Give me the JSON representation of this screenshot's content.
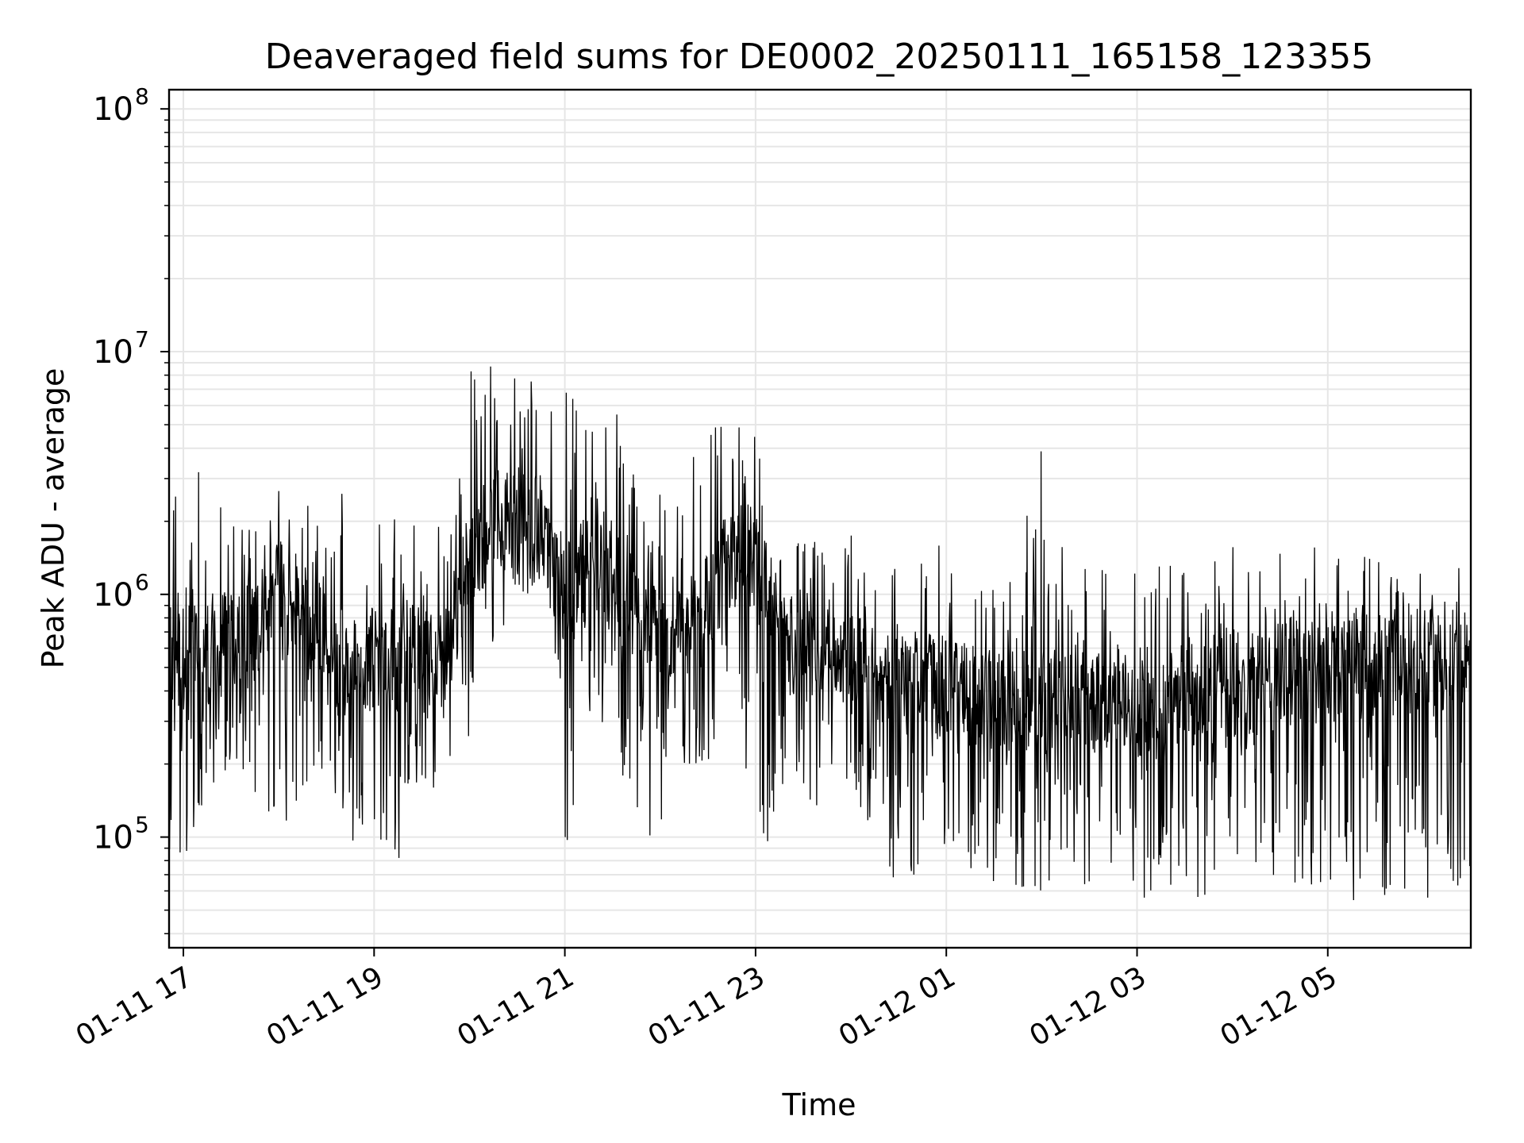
{
  "chart_data": {
    "type": "line",
    "title": "Deaveraged field sums for DE0002_20250111_165158_123355",
    "xlabel": "Time",
    "ylabel": "Peak ADU - average",
    "y_scale": "log",
    "ylim": [
      35000,
      120000000
    ],
    "xlim": [
      "2025-01-11 16:51",
      "2025-01-12 06:30"
    ],
    "grid": true,
    "line_color": "#000000",
    "grid_color": "#e6e6e6",
    "x_ticks": [
      {
        "label": "01-11 17",
        "t": "2025-01-11 17:00"
      },
      {
        "label": "01-11 19",
        "t": "2025-01-11 19:00"
      },
      {
        "label": "01-11 21",
        "t": "2025-01-11 21:00"
      },
      {
        "label": "01-11 23",
        "t": "2025-01-11 23:00"
      },
      {
        "label": "01-12 01",
        "t": "2025-01-12 01:00"
      },
      {
        "label": "01-12 03",
        "t": "2025-01-12 03:00"
      },
      {
        "label": "01-12 05",
        "t": "2025-01-12 05:00"
      }
    ],
    "y_ticks": [
      {
        "base": "10",
        "exp": "5",
        "value": 100000
      },
      {
        "base": "10",
        "exp": "6",
        "value": 1000000
      },
      {
        "base": "10",
        "exp": "7",
        "value": 10000000
      },
      {
        "base": "10",
        "exp": "8",
        "value": 100000000
      }
    ],
    "series": [
      {
        "x": [
          "2025-01-11 16:51",
          "2025-01-11 17:00",
          "2025-01-11 17:15",
          "2025-01-11 17:30",
          "2025-01-11 17:45",
          "2025-01-11 18:00",
          "2025-01-11 18:15",
          "2025-01-11 18:30",
          "2025-01-11 18:45",
          "2025-01-11 19:00",
          "2025-01-11 19:15",
          "2025-01-11 19:30",
          "2025-01-11 19:45",
          "2025-01-11 20:00",
          "2025-01-11 20:15",
          "2025-01-11 20:30",
          "2025-01-11 20:45",
          "2025-01-11 21:00",
          "2025-01-11 21:15",
          "2025-01-11 21:30",
          "2025-01-11 21:45",
          "2025-01-11 22:00",
          "2025-01-11 22:15",
          "2025-01-11 22:30",
          "2025-01-11 22:45",
          "2025-01-11 23:00",
          "2025-01-11 23:15",
          "2025-01-11 23:30",
          "2025-01-11 23:45",
          "2025-01-12 00:00",
          "2025-01-12 00:15",
          "2025-01-12 00:30",
          "2025-01-12 00:45",
          "2025-01-12 01:00",
          "2025-01-12 01:15",
          "2025-01-12 01:30",
          "2025-01-12 01:45",
          "2025-01-12 02:00",
          "2025-01-12 02:15",
          "2025-01-12 02:30",
          "2025-01-12 02:45",
          "2025-01-12 03:00",
          "2025-01-12 03:15",
          "2025-01-12 03:30",
          "2025-01-12 03:45",
          "2025-01-12 04:00",
          "2025-01-12 04:15",
          "2025-01-12 04:30",
          "2025-01-12 04:45",
          "2025-01-12 05:00",
          "2025-01-12 05:15",
          "2025-01-12 05:30",
          "2025-01-12 05:45",
          "2025-01-12 06:00",
          "2025-01-12 06:15",
          "2025-01-12 06:30"
        ],
        "y_center": [
          600000,
          550000,
          600000,
          650000,
          700000,
          1200000,
          800000,
          550000,
          500000,
          550000,
          600000,
          550000,
          500000,
          1500000,
          2000000,
          2200000,
          2000000,
          900000,
          1400000,
          1200000,
          800000,
          700000,
          700000,
          900000,
          1500000,
          1300000,
          700000,
          550000,
          500000,
          500000,
          480000,
          450000,
          450000,
          400000,
          380000,
          370000,
          360000,
          350000,
          350000,
          350000,
          350000,
          360000,
          370000,
          380000,
          400000,
          420000,
          440000,
          460000,
          480000,
          500000,
          500000,
          510000,
          520000,
          520000,
          530000,
          530000
        ],
        "y_min": [
          90000,
          55000,
          150000,
          200000,
          150000,
          90000,
          120000,
          200000,
          85000,
          100000,
          70000,
          130000,
          180000,
          250000,
          600000,
          900000,
          800000,
          75000,
          300000,
          250000,
          90000,
          90000,
          200000,
          200000,
          500000,
          60000,
          150000,
          80000,
          150000,
          150000,
          100000,
          60000,
          70000,
          80000,
          70000,
          65000,
          60000,
          60000,
          65000,
          60000,
          60000,
          55000,
          55000,
          55000,
          58000,
          60000,
          60000,
          60000,
          58000,
          55000,
          55000,
          52000,
          55000,
          55000,
          60000,
          65000
        ],
        "y_max": [
          2800000,
          5000000,
          2500000,
          2800000,
          2900000,
          2800000,
          2500000,
          1800000,
          7000000,
          4000000,
          2000000,
          3300000,
          1800000,
          9800000,
          9000000,
          10300000,
          8800000,
          7000000,
          7200000,
          7000000,
          4200000,
          2800000,
          3700000,
          5800000,
          5800000,
          4500000,
          1700000,
          2000000,
          1500000,
          2000000,
          1500000,
          1500000,
          1600000,
          1600000,
          1300000,
          1200000,
          1200000,
          5300000,
          1300000,
          1400000,
          1400000,
          1500000,
          1450000,
          1500000,
          1550000,
          1600000,
          2200000,
          1650000,
          1600000,
          1580000,
          1550000,
          1500000,
          1550000,
          1600000,
          1550000,
          1500000
        ]
      }
    ]
  }
}
